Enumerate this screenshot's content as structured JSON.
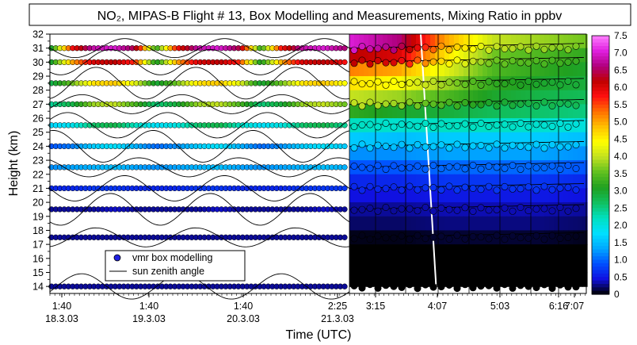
{
  "chart_data": {
    "type": "heatmap",
    "title": "NO₂, MIPAS-B Flight # 13, Box Modelling and Measurements, Mixing Ratio in ppbv",
    "xlabel": "Time (UTC)",
    "ylabel": "Height (km)",
    "ylim": [
      13.5,
      32
    ],
    "y_ticks": [
      "14",
      "15",
      "16",
      "17",
      "18",
      "19",
      "20",
      "21",
      "22",
      "23",
      "24",
      "25",
      "26",
      "27",
      "28",
      "29",
      "30",
      "31",
      "32"
    ],
    "x_ticks": [
      {
        "time": "1:40",
        "date": "18.3.03"
      },
      {
        "time": "1:40",
        "date": "19.3.03"
      },
      {
        "time": "1:40",
        "date": "20.3.03"
      },
      {
        "time": "2:25",
        "date": "21.3.03"
      },
      {
        "time": "3:15",
        "date": ""
      },
      {
        "time": "4:07",
        "date": ""
      },
      {
        "time": "5:03",
        "date": ""
      },
      {
        "time": "6:16",
        "date": ""
      },
      {
        "time": "7:07",
        "date": ""
      }
    ],
    "colorbar": {
      "ticks": [
        "7.5",
        "7.0",
        "6.5",
        "6.0",
        "5.5",
        "5.0",
        "4.5",
        "4.0",
        "3.5",
        "3.0",
        "2.5",
        "2.0",
        "1.5",
        "1.0",
        "0.5",
        "0"
      ],
      "min": 0,
      "max": 7.5,
      "colors": [
        "#000000",
        "#1010e0",
        "#0050ff",
        "#00a8ff",
        "#00e0ff",
        "#00e0c0",
        "#10c060",
        "#20a020",
        "#60c020",
        "#c0e020",
        "#ffff00",
        "#ffc000",
        "#ff7000",
        "#ff1010",
        "#c00000",
        "#b00080",
        "#e020e0",
        "#ff80ff"
      ]
    },
    "model_series": [
      {
        "height": 31.0,
        "values": [
          3.0,
          5.8,
          6.8,
          7.0,
          6.4,
          3.2,
          5.8,
          6.8,
          7.0,
          6.4,
          3.2,
          5.8,
          6.8,
          7.0,
          6.6
        ]
      },
      {
        "height": 30.0,
        "values": [
          3.0,
          5.0,
          6.0,
          6.2,
          5.6,
          3.0,
          5.0,
          6.0,
          6.2,
          5.6,
          3.0,
          5.0,
          6.0,
          6.2,
          5.8
        ]
      },
      {
        "height": 28.5,
        "values": [
          2.8,
          3.6,
          4.6,
          4.8,
          4.2,
          2.9,
          3.6,
          4.6,
          4.8,
          4.2,
          2.9,
          3.6,
          4.6,
          4.8,
          4.4
        ]
      },
      {
        "height": 27.0,
        "values": [
          2.4,
          2.8,
          3.8,
          4.0,
          3.4,
          2.5,
          2.9,
          3.8,
          4.0,
          3.4,
          2.5,
          2.9,
          3.8,
          4.0,
          3.6
        ]
      },
      {
        "height": 25.5,
        "values": [
          1.7,
          1.9,
          2.6,
          2.8,
          2.2,
          1.8,
          2.0,
          2.6,
          2.8,
          2.2,
          1.8,
          2.0,
          2.6,
          2.8,
          2.4
        ]
      },
      {
        "height": 24.0,
        "values": [
          0.9,
          1.1,
          1.6,
          1.8,
          1.4,
          1.0,
          1.2,
          1.6,
          1.8,
          1.4,
          1.0,
          1.2,
          1.6,
          1.8,
          1.6
        ]
      },
      {
        "height": 22.5,
        "values": [
          1.2,
          1.3,
          1.4,
          1.5,
          1.3,
          1.2,
          1.3,
          1.4,
          1.5,
          1.3,
          1.2,
          1.3,
          1.4,
          1.5,
          1.4
        ]
      },
      {
        "height": 21.0,
        "values": [
          0.6,
          0.6,
          0.7,
          0.7,
          0.6,
          0.6,
          0.6,
          0.7,
          0.7,
          0.6,
          0.6,
          0.6,
          0.7,
          0.7,
          0.7
        ]
      },
      {
        "height": 19.5,
        "values": [
          0.3,
          0.3,
          0.3,
          0.4,
          0.3,
          0.3,
          0.3,
          0.3,
          0.4,
          0.3,
          0.3,
          0.3,
          0.3,
          0.4,
          0.3
        ]
      },
      {
        "height": 17.5,
        "values": [
          0.3,
          0.3,
          0.3,
          0.3,
          0.3,
          0.3,
          0.3,
          0.3,
          0.3,
          0.3,
          0.3,
          0.3,
          0.3,
          0.3,
          0.3
        ]
      },
      {
        "height": 14.0,
        "values": [
          0.3,
          0.3,
          0.3,
          0.3,
          0.3,
          0.3,
          0.3,
          0.3,
          0.3,
          0.3,
          0.3,
          0.3,
          0.3,
          0.3,
          0.3
        ]
      }
    ],
    "measurement_profile": [
      {
        "height": 31.5,
        "values": [
          7.0,
          6.6,
          5.0,
          4.0,
          3.8,
          3.6
        ]
      },
      {
        "height": 30.5,
        "values": [
          6.2,
          6.0,
          4.6,
          3.6,
          3.4,
          3.2
        ]
      },
      {
        "height": 29.5,
        "values": [
          5.2,
          5.0,
          4.2,
          3.4,
          3.2,
          3.0
        ]
      },
      {
        "height": 28.5,
        "values": [
          4.6,
          4.4,
          3.8,
          3.2,
          3.0,
          2.9
        ]
      },
      {
        "height": 27.5,
        "values": [
          4.0,
          3.8,
          3.4,
          3.0,
          2.8,
          2.7
        ]
      },
      {
        "height": 26.5,
        "values": [
          3.2,
          3.0,
          2.9,
          2.7,
          2.6,
          2.5
        ]
      },
      {
        "height": 25.5,
        "values": [
          2.2,
          2.1,
          2.2,
          2.2,
          2.1,
          2.0
        ]
      },
      {
        "height": 24.5,
        "values": [
          1.6,
          1.5,
          1.6,
          1.6,
          1.6,
          1.5
        ]
      },
      {
        "height": 23.5,
        "values": [
          1.2,
          1.2,
          1.3,
          1.3,
          1.3,
          1.2
        ]
      },
      {
        "height": 22.5,
        "values": [
          0.9,
          0.9,
          1.0,
          1.0,
          1.0,
          0.9
        ]
      },
      {
        "height": 21.5,
        "values": [
          0.6,
          0.6,
          0.7,
          0.7,
          0.7,
          0.6
        ]
      },
      {
        "height": 20.5,
        "values": [
          0.45,
          0.45,
          0.5,
          0.5,
          0.5,
          0.45
        ]
      },
      {
        "height": 19.5,
        "values": [
          0.3,
          0.3,
          0.35,
          0.35,
          0.35,
          0.3
        ]
      },
      {
        "height": 18.5,
        "values": [
          0.2,
          0.2,
          0.25,
          0.25,
          0.25,
          0.2
        ]
      },
      {
        "height": 17.5,
        "values": [
          0.05,
          0.05,
          0.1,
          0.1,
          0.1,
          0.05
        ]
      },
      {
        "height": 16.5,
        "values": [
          0.0,
          0.0,
          0.0,
          0.0,
          0.0,
          0.0
        ]
      },
      {
        "height": 15.5,
        "values": [
          0.0,
          0.0,
          0.0,
          0.0,
          0.0,
          0.0
        ]
      },
      {
        "height": 14.5,
        "values": [
          0.0,
          0.0,
          0.0,
          0.0,
          0.0,
          0.0
        ]
      }
    ],
    "legend": {
      "position": "bottom-left",
      "entries": [
        "vmr box modelling",
        "sun zenith angle"
      ]
    }
  }
}
